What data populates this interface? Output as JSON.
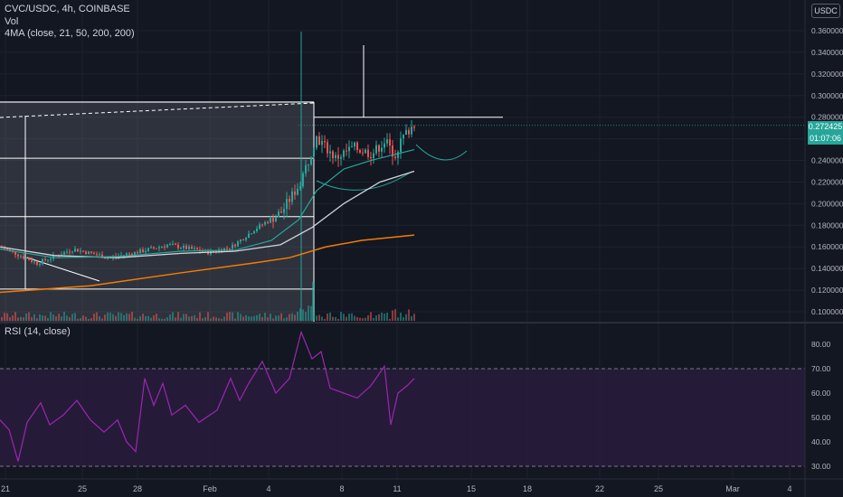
{
  "header": {
    "symbol_line": "CVC/USDC, 4h, COINBASE",
    "vol_label": "Vol",
    "ma_label": "4MA (close, 21, 50, 200, 200)",
    "currency": "USDC"
  },
  "rsi_panel": {
    "label": "RSI (14, close)"
  },
  "price_tags": {
    "last_price": "0.272425",
    "countdown": "01:07:06"
  },
  "colors": {
    "background": "#131722",
    "up": "#26a69a",
    "down": "#ef5350",
    "ma21": "#26a69a",
    "ma50": "#d1d4dc",
    "ma200": "#f57c00",
    "rsi": "#9c27b0",
    "rsi_band": "#2a1b3d",
    "drawing": "#ffffff"
  },
  "chart_data": [
    {
      "type": "candlestick",
      "name": "price",
      "y_ticks": [
        "0.360000",
        "0.340000",
        "0.320000",
        "0.300000",
        "0.280000",
        "0.260000",
        "0.240000",
        "0.220000",
        "0.200000",
        "0.180000",
        "0.160000",
        "0.140000",
        "0.120000",
        "0.100000"
      ],
      "ylim": [
        0.094,
        0.37
      ],
      "x_ticks": [
        "21",
        "25",
        "28",
        "Feb",
        "4",
        "8",
        "11",
        "15",
        "18",
        "22",
        "25",
        "Mar",
        "4"
      ],
      "last_price": 0.272425,
      "levels": [
        0.294,
        0.28,
        0.242,
        0.188,
        0.121
      ]
    },
    {
      "type": "line",
      "name": "RSI",
      "y_ticks": [
        "80.00",
        "70.00",
        "60.00",
        "50.00",
        "40.00",
        "30.00"
      ],
      "ylim": [
        27,
        87
      ],
      "band": [
        30,
        70
      ]
    }
  ]
}
